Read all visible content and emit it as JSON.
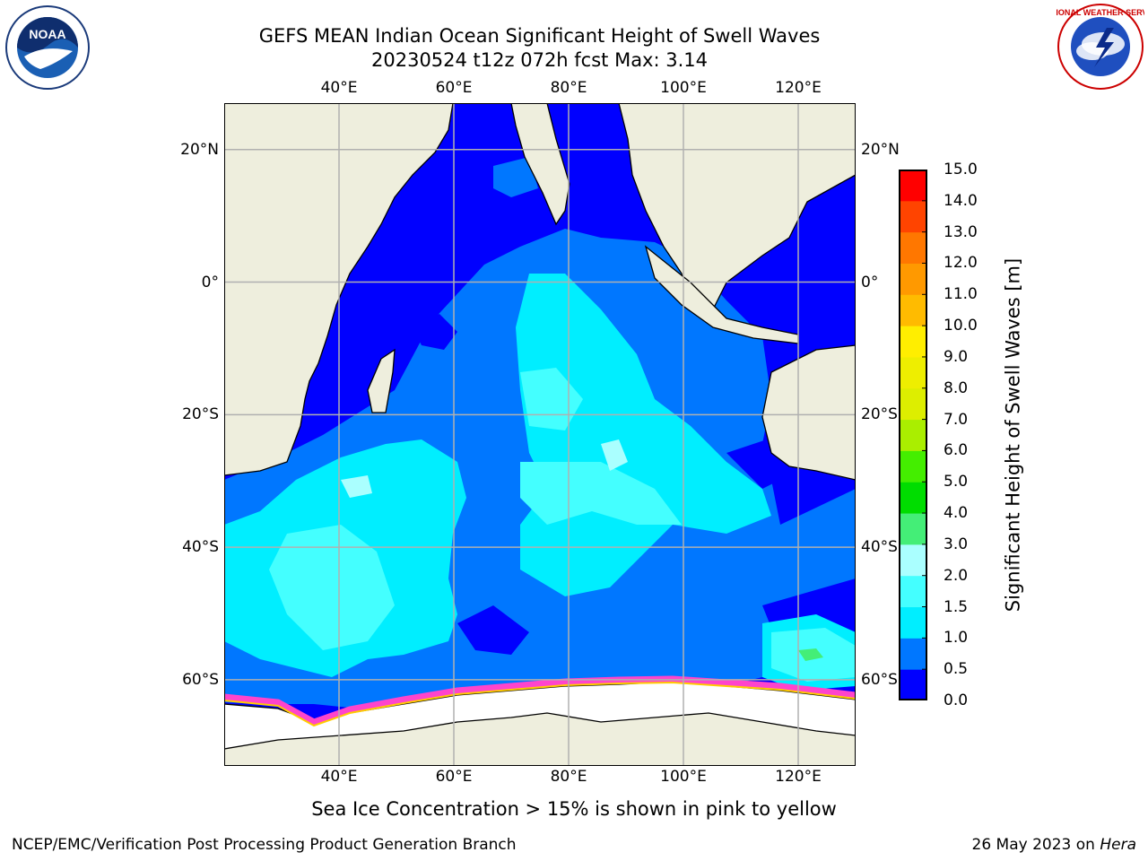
{
  "title": {
    "line1": "GEFS MEAN Indian Ocean Significant Height of Swell Waves",
    "line2": "20230524 t12z 072h fcst   Max: 3.14"
  },
  "logos": {
    "left": {
      "name": "noaa-logo",
      "text": "NOAA"
    },
    "right": {
      "name": "national-weather-service-logo",
      "text": "NATIONAL WEATHER SERVICE"
    }
  },
  "map": {
    "lon_ticks": [
      "40°E",
      "60°E",
      "80°E",
      "100°E",
      "120°E"
    ],
    "lat_ticks": [
      "20°N",
      "0°",
      "20°S",
      "40°S",
      "60°S"
    ],
    "lon_range": [
      20,
      130
    ],
    "lat_range": [
      -73,
      27
    ],
    "ocean_base_color": "#0000ff",
    "land_color": "#eeeedd",
    "grid": true
  },
  "colorbar": {
    "label": "Significant Height of Swell Waves [m]",
    "ticks": [
      "0.0",
      "0.5",
      "1.0",
      "1.5",
      "2.0",
      "3.0",
      "4.0",
      "5.0",
      "6.0",
      "7.0",
      "8.0",
      "9.0",
      "10.0",
      "11.0",
      "12.0",
      "13.0",
      "14.0",
      "15.0"
    ],
    "colors": [
      "#0000ff",
      "#0077ff",
      "#00eeff",
      "#44ffff",
      "#aaffff",
      "#44ee77",
      "#00dd00",
      "#44ee00",
      "#aaee00",
      "#ddee00",
      "#eeee00",
      "#ffee00",
      "#ffbb00",
      "#ff9900",
      "#ff7700",
      "#ff4400",
      "#ff0000"
    ]
  },
  "footnote": "Sea Ice Concentration > 15% is shown in pink to yellow",
  "credit": "NCEP/EMC/Verification Post Processing Product Generation Branch",
  "date": {
    "text": "26 May 2023 on ",
    "machine": "Hera"
  }
}
